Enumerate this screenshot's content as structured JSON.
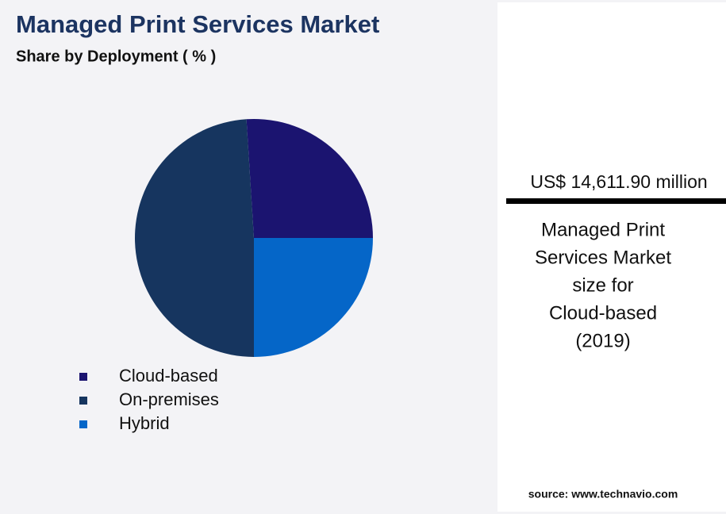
{
  "chart_data": {
    "type": "pie",
    "title": "Managed Print Services Market",
    "subtitle": "Share by Deployment ( % )",
    "categories": [
      "Cloud-based",
      "On-premises",
      "Hybrid"
    ],
    "values": [
      26,
      49,
      25
    ],
    "colors": [
      "#1b1470",
      "#16355f",
      "#0566c8"
    ]
  },
  "panel": {
    "headline": "US$ 14,611.90 million",
    "description": [
      "Managed Print",
      "Services Market",
      "size for",
      "Cloud-based",
      "(2019)"
    ],
    "source": "source: www.technavio.com"
  }
}
